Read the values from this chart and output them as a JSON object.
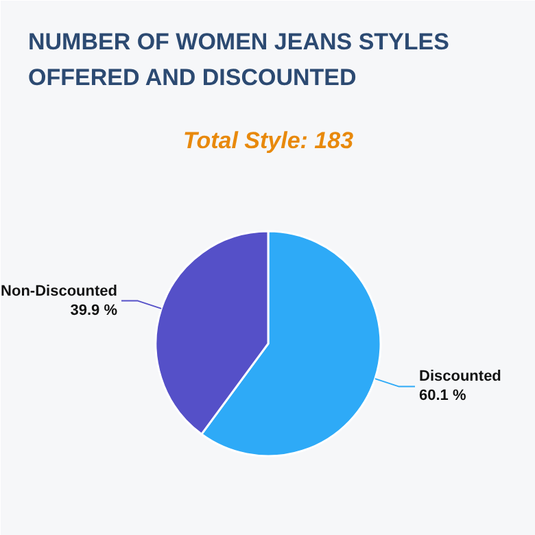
{
  "chart_data": {
    "type": "pie",
    "title": "NUMBER OF WOMEN JEANS STYLES OFFERED AND DISCOUNTED",
    "subtitle": "Total Style: 183",
    "categories": [
      "Discounted",
      "Non-Discounted"
    ],
    "values": [
      60.1,
      39.9
    ],
    "colors": [
      "#2eaaf7",
      "#5550c8"
    ],
    "value_labels": [
      "60.1 %",
      "39.9 %"
    ],
    "legend": false
  }
}
